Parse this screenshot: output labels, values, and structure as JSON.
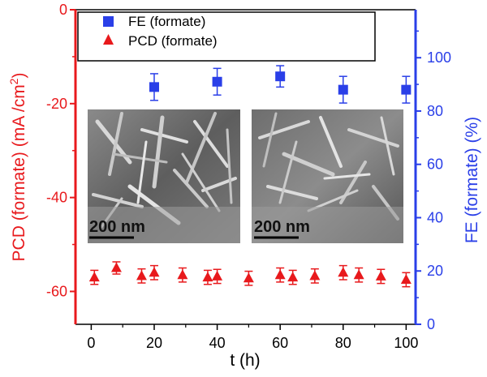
{
  "chart_data": {
    "type": "scatter",
    "xlabel": "t (h)",
    "ylabel_left": "PCD (formate) (mA /cm",
    "ylabel_left_sup": "2",
    "ylabel_left_close": ")",
    "ylabel_right": "FE (formate) (%)",
    "xlim": [
      -5,
      103
    ],
    "ylim_left": [
      -67,
      0
    ],
    "ylim_right": [
      0,
      118
    ],
    "x_ticks": [
      "0",
      "20",
      "40",
      "60",
      "80",
      "100"
    ],
    "y_left_ticks": [
      "0",
      "-20",
      "-40",
      "-60"
    ],
    "y_right_ticks": [
      "0",
      "20",
      "40",
      "60",
      "80",
      "100"
    ],
    "legend": [
      {
        "label": "FE (formate)",
        "marker": "square"
      },
      {
        "label": "PCD (formate)",
        "marker": "triangle"
      }
    ],
    "colors": {
      "fe": "#2a3fe8",
      "pcd": "#e8191c",
      "axis_left": "#e8191c",
      "axis_right": "#2a3fe8"
    },
    "series": [
      {
        "name": "FE (formate)",
        "axis": "right",
        "marker": "square",
        "points": [
          {
            "x": 20,
            "y": 89,
            "err": 5
          },
          {
            "x": 40,
            "y": 91,
            "err": 5
          },
          {
            "x": 60,
            "y": 93,
            "err": 4
          },
          {
            "x": 80,
            "y": 88,
            "err": 5
          },
          {
            "x": 100,
            "y": 88,
            "err": 5
          }
        ]
      },
      {
        "name": "PCD (formate)",
        "axis": "left",
        "marker": "triangle",
        "points": [
          {
            "x": 1,
            "y": -57,
            "err": 1.5
          },
          {
            "x": 8,
            "y": -55,
            "err": 1.3
          },
          {
            "x": 16,
            "y": -56.7,
            "err": 1.5
          },
          {
            "x": 20,
            "y": -56,
            "err": 1.5
          },
          {
            "x": 29,
            "y": -56.5,
            "err": 1.5
          },
          {
            "x": 37,
            "y": -57,
            "err": 1.5
          },
          {
            "x": 40,
            "y": -56.8,
            "err": 1.5
          },
          {
            "x": 50,
            "y": -57.2,
            "err": 1.5
          },
          {
            "x": 60,
            "y": -56.5,
            "err": 1.5
          },
          {
            "x": 64,
            "y": -57,
            "err": 1.5
          },
          {
            "x": 71,
            "y": -56.7,
            "err": 1.5
          },
          {
            "x": 80,
            "y": -56,
            "err": 1.5
          },
          {
            "x": 85,
            "y": -56.5,
            "err": 1.5
          },
          {
            "x": 92,
            "y": -56.8,
            "err": 1.5
          },
          {
            "x": 100,
            "y": -57.5,
            "err": 1.5
          }
        ]
      }
    ]
  },
  "insets": [
    {
      "scale_label": "200 nm"
    },
    {
      "scale_label": "200 nm"
    }
  ]
}
